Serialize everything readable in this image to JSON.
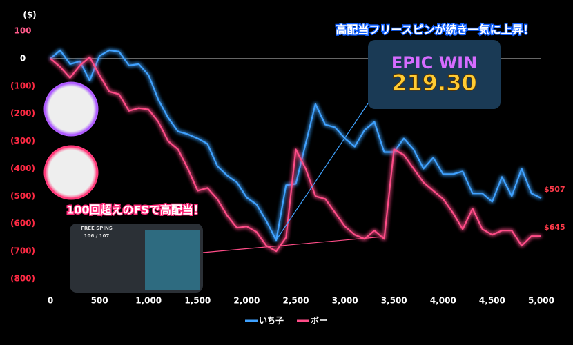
{
  "chart_data": {
    "type": "line",
    "y_unit_label": "($)",
    "x": [
      0,
      100,
      200,
      300,
      400,
      500,
      600,
      700,
      800,
      900,
      1000,
      1100,
      1200,
      1300,
      1400,
      1500,
      1600,
      1700,
      1800,
      1900,
      2000,
      2100,
      2200,
      2300,
      2400,
      2500,
      2600,
      2700,
      2800,
      2900,
      3000,
      3100,
      3200,
      3300,
      3400,
      3500,
      3600,
      3700,
      3800,
      3900,
      4000,
      4100,
      4200,
      4300,
      4400,
      4500,
      4600,
      4700,
      4800,
      4900,
      5000
    ],
    "series": [
      {
        "name": "いち子",
        "color": "#3fa2ff",
        "values": [
          0,
          30,
          -20,
          -10,
          -80,
          10,
          30,
          25,
          -25,
          -20,
          -60,
          -150,
          -215,
          -265,
          -275,
          -290,
          -310,
          -390,
          -425,
          -450,
          -505,
          -530,
          -590,
          -660,
          -460,
          -455,
          -310,
          -165,
          -240,
          -250,
          -290,
          -320,
          -260,
          -230,
          -340,
          -340,
          -290,
          -330,
          -400,
          -360,
          -420,
          -420,
          -410,
          -490,
          -490,
          -520,
          -430,
          -500,
          -400,
          -490,
          -507
        ],
        "end_label": "$507"
      },
      {
        "name": "ボー",
        "color": "#ff4d88",
        "values": [
          0,
          -30,
          -70,
          -25,
          5,
          -60,
          -120,
          -130,
          -190,
          -180,
          -185,
          -230,
          -300,
          -330,
          -400,
          -480,
          -470,
          -510,
          -570,
          -615,
          -610,
          -630,
          -680,
          -700,
          -650,
          -330,
          -400,
          -500,
          -510,
          -560,
          -610,
          -640,
          -655,
          -625,
          -655,
          -330,
          -350,
          -400,
          -450,
          -480,
          -510,
          -560,
          -620,
          -545,
          -620,
          -640,
          -625,
          -625,
          -680,
          -645,
          -645
        ],
        "end_label": "$645"
      }
    ],
    "xlim": [
      0,
      5000
    ],
    "ylim": [
      -800,
      100
    ],
    "xticks": [
      0,
      500,
      {
        "value": 1000,
        "label": "1,000"
      },
      {
        "value": 1500,
        "label": "1,500"
      },
      {
        "value": 2000,
        "label": "2,000"
      },
      {
        "value": 2500,
        "label": "2,500"
      },
      {
        "value": 3000,
        "label": "3,000"
      },
      {
        "value": 3500,
        "label": "3,500"
      },
      {
        "value": 4000,
        "label": "4,000"
      },
      {
        "value": 4500,
        "label": "4,500"
      },
      {
        "value": 5000,
        "label": "5,000"
      }
    ],
    "yticks": [
      100,
      0,
      {
        "value": -100,
        "label": "(100)"
      },
      {
        "value": -200,
        "label": "(200)"
      },
      {
        "value": -300,
        "label": "(300)"
      },
      {
        "value": -400,
        "label": "(400)"
      },
      {
        "value": -500,
        "label": "(500)"
      },
      {
        "value": -600,
        "label": "(600)"
      },
      {
        "value": -700,
        "label": "(700)"
      },
      {
        "value": -800,
        "label": "(800)"
      }
    ],
    "annotations": [
      "高配当フリースピンが続き一気に上昇！",
      "100回超えのFSで高配当！"
    ],
    "image_texts": [
      "EPIC WIN",
      "219.30",
      "FREE SPINS",
      "106 / 107"
    ],
    "zero_line": true
  }
}
